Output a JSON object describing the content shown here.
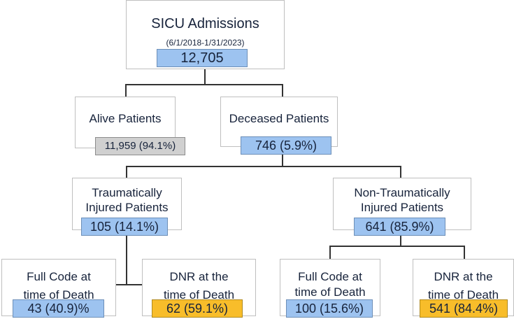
{
  "root": {
    "title": "SICU Admissions",
    "period": "(6/1/2018-1/31/2023)",
    "value": "12,705"
  },
  "alive": {
    "label": "Alive Patients",
    "value": "11,959 (94.1%)"
  },
  "deceased": {
    "label": "Deceased Patients",
    "value": "746 (5.9%)"
  },
  "trauma": {
    "line1": "Traumatically",
    "line2": "Injured Patients",
    "value": "105 (14.1%)"
  },
  "nontrauma": {
    "line1": "Non-Traumatically",
    "line2": "Injured Patients",
    "value": "641 (85.9%)"
  },
  "trauma_full": {
    "line1": "Full Code at",
    "line2": "time of Death",
    "value": "43 (40.9)%"
  },
  "trauma_dnr": {
    "line1": "DNR at the",
    "line2": "time of Death",
    "value": "62 (59.1%)"
  },
  "nontrauma_full": {
    "line1": "Full Code at",
    "line2": "time of Death",
    "value": "100 (15.6%)"
  },
  "nontrauma_dnr": {
    "line1": "DNR at the",
    "line2": "time of Death",
    "value": "541 (84.4%)"
  },
  "colors": {
    "blue": "#9dc3f0",
    "gray": "#d0d0d0",
    "gold": "#f8bd2a"
  }
}
